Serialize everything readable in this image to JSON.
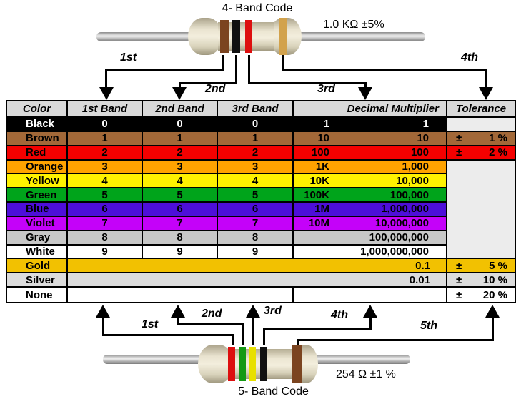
{
  "top_resistor": {
    "title": "4- Band Code",
    "value": "1.0 KΩ  ±5%",
    "bands": [
      "brown",
      "black",
      "red",
      "gold"
    ],
    "arrow_labels": [
      "1st",
      "2nd",
      "3rd",
      "4th"
    ]
  },
  "bottom_resistor": {
    "title": "5- Band Code",
    "value": "254 Ω  ±1 %",
    "bands": [
      "red",
      "green",
      "yellow",
      "black",
      "brown"
    ],
    "arrow_labels": [
      "1st",
      "2nd",
      "3rd",
      "4th",
      "5th"
    ]
  },
  "band_colors": {
    "brown": "#7b4420",
    "black": "#111111",
    "red": "#dd0f0f",
    "gold": "#d2a24c",
    "green": "#149914",
    "yellow": "#e8e000"
  },
  "table": {
    "headers": {
      "color": "Color",
      "band1": "1st Band",
      "band2": "2nd Band",
      "band3": "3rd Band",
      "multiplier": "Decimal Multiplier",
      "tolerance": "Tolerance"
    },
    "tolerance_sign": "±",
    "empty_cell_bg": "#ececec",
    "header_bg": "#d9d9d9",
    "rows": [
      {
        "name": "Black",
        "band1": "0",
        "band2": "0",
        "band3": "0",
        "mult_short": "1",
        "mult_full": "1",
        "tolerance": "",
        "bg": "#000000",
        "fg": "#ffffff",
        "tol_bg": "#ececec",
        "layout": "normal",
        "tol_merge_down": false
      },
      {
        "name": "Brown",
        "band1": "1",
        "band2": "1",
        "band3": "1",
        "mult_short": "10",
        "mult_full": "10",
        "tolerance": "1 %",
        "bg": "#a26838",
        "fg": "#000000",
        "tol_bg": "#a26838",
        "layout": "normal",
        "tol_merge_down": false
      },
      {
        "name": "Red",
        "band1": "2",
        "band2": "2",
        "band3": "2",
        "mult_short": "100",
        "mult_full": "100",
        "tolerance": "2 %",
        "bg": "#f40000",
        "fg": "#000000",
        "tol_bg": "#f40000",
        "layout": "normal",
        "tol_merge_down": false
      },
      {
        "name": "Orange",
        "band1": "3",
        "band2": "3",
        "band3": "3",
        "mult_short": "1K",
        "mult_full": "1,000",
        "tolerance": "",
        "bg": "#ffa300",
        "fg": "#000000",
        "tol_bg": "#ececec",
        "layout": "normal",
        "tol_merge_down": true
      },
      {
        "name": "Yellow",
        "band1": "4",
        "band2": "4",
        "band3": "4",
        "mult_short": "10K",
        "mult_full": "10,000",
        "tolerance": "",
        "bg": "#fff200",
        "fg": "#000000",
        "tol_bg": "#ececec",
        "layout": "normal",
        "tol_merge_down": true
      },
      {
        "name": "Green",
        "band1": "5",
        "band2": "5",
        "band3": "5",
        "mult_short": "100K",
        "mult_full": "100,000",
        "tolerance": "",
        "bg": "#00a41b",
        "fg": "#000000",
        "tol_bg": "#ececec",
        "layout": "normal",
        "tol_merge_down": true
      },
      {
        "name": "Blue",
        "band1": "6",
        "band2": "6",
        "band3": "6",
        "mult_short": "1M",
        "mult_full": "1,000,000",
        "tolerance": "",
        "bg": "#4d0fd9",
        "fg": "#000000",
        "tol_bg": "#ececec",
        "layout": "normal",
        "tol_merge_down": true
      },
      {
        "name": "Violet",
        "band1": "7",
        "band2": "7",
        "band3": "7",
        "mult_short": "10M",
        "mult_full": "10,000,000",
        "tolerance": "",
        "bg": "#c402f9",
        "fg": "#000000",
        "tol_bg": "#ececec",
        "layout": "normal",
        "tol_merge_down": true
      },
      {
        "name": "Gray",
        "band1": "8",
        "band2": "8",
        "band3": "8",
        "mult_short": "",
        "mult_full": "100,000,000",
        "tolerance": "",
        "bg": "#c8c8c8",
        "fg": "#000000",
        "tol_bg": "#ececec",
        "layout": "normal",
        "tol_merge_down": true
      },
      {
        "name": "White",
        "band1": "9",
        "band2": "9",
        "band3": "9",
        "mult_short": "",
        "mult_full": "1,000,000,000",
        "tolerance": "",
        "bg": "#ffffff",
        "fg": "#000000",
        "tol_bg": "#ececec",
        "layout": "normal",
        "tol_merge_down": false
      },
      {
        "name": "Gold",
        "band1": "",
        "band2": "",
        "band3": "",
        "mult_short": "",
        "mult_full": "0.1",
        "tolerance": "5 %",
        "bg": "#f2c101",
        "fg": "#000000",
        "tol_bg": "#f2c101",
        "layout": "merged_mult",
        "tol_merge_down": false
      },
      {
        "name": "Silver",
        "band1": "",
        "band2": "",
        "band3": "",
        "mult_short": "",
        "mult_full": "0.01",
        "tolerance": "10 %",
        "bg": "#dcdcdc",
        "fg": "#000000",
        "tol_bg": "#dcdcdc",
        "layout": "merged_mult",
        "tol_merge_down": false
      },
      {
        "name": "None",
        "band1": "",
        "band2": "",
        "band3": "",
        "mult_short": "",
        "mult_full": "",
        "tolerance": "20 %",
        "bg": "#ffffff",
        "fg": "#000000",
        "tol_bg": "#ffffff",
        "layout": "merged_bands",
        "tol_merge_down": false
      }
    ]
  }
}
